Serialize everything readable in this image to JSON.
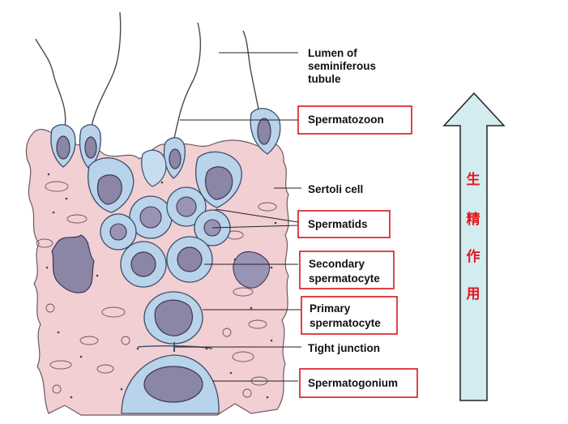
{
  "labels": {
    "lumen": [
      "Lumen of",
      "seminiferous",
      "tubule"
    ],
    "spermatozoon": "Spermatozoon",
    "sertoli": "Sertoli cell",
    "spermatids": "Spermatids",
    "secondary": [
      "Secondary",
      "spermatocyte"
    ],
    "primary": [
      "Primary",
      "spermatocyte"
    ],
    "tight_junction": "Tight junction",
    "spermatogonium": "Spermatogonium"
  },
  "arrow_chars": [
    "生",
    "精",
    "作",
    "用"
  ],
  "colors": {
    "tissue": "#f1cfd3",
    "cell": "#b8d3ea",
    "nucleus": "#8c86a6",
    "box": "#d9141c",
    "arrow_fill": "#d3ecf0",
    "arrow_text": "#e8141b"
  }
}
